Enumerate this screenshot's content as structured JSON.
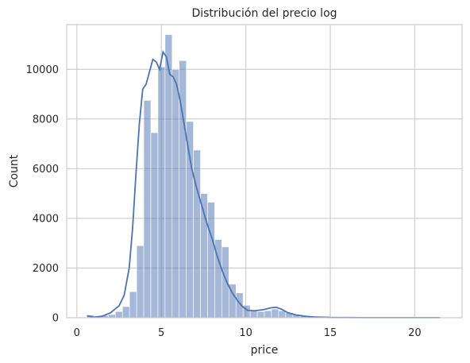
{
  "chart_data": {
    "type": "histogram",
    "title": "Distribución del precio log",
    "xlabel": "price",
    "ylabel": "Count",
    "xlim": [
      -0.6,
      22.8
    ],
    "ylim": [
      0,
      11800
    ],
    "xticks": [
      0,
      5,
      10,
      15,
      20
    ],
    "yticks": [
      0,
      2000,
      4000,
      6000,
      8000,
      10000
    ],
    "grid": true,
    "bin_edges": [
      0.6,
      1.02,
      1.44,
      1.86,
      2.28,
      2.7,
      3.12,
      3.54,
      3.96,
      4.38,
      4.8,
      5.22,
      5.64,
      6.06,
      6.48,
      6.9,
      7.32,
      7.74,
      8.16,
      8.58,
      9.0,
      9.42,
      9.84,
      10.26,
      10.68,
      11.1,
      11.52,
      11.94,
      12.36,
      12.78,
      13.2,
      13.62,
      14.04,
      14.46,
      14.88,
      15.3,
      15.72,
      16.14,
      16.56,
      16.98,
      17.4,
      17.82,
      18.24,
      18.66,
      19.08,
      19.5,
      19.92,
      20.34,
      20.76,
      21.18,
      21.6
    ],
    "counts": [
      110,
      60,
      90,
      130,
      250,
      450,
      1050,
      2900,
      8750,
      7450,
      10100,
      11400,
      10000,
      10350,
      7900,
      6750,
      5000,
      4650,
      3150,
      2850,
      1350,
      1000,
      500,
      300,
      250,
      280,
      350,
      280,
      200,
      120,
      60,
      30,
      20,
      10,
      5,
      5,
      5,
      5,
      5,
      5,
      5,
      5,
      5,
      5,
      5,
      5,
      5,
      5,
      5,
      5
    ],
    "kde": {
      "x": [
        0.6,
        1.0,
        1.5,
        2.0,
        2.5,
        2.8,
        3.1,
        3.3,
        3.5,
        3.7,
        3.9,
        4.1,
        4.3,
        4.5,
        4.7,
        4.9,
        5.1,
        5.3,
        5.5,
        5.7,
        5.9,
        6.1,
        6.3,
        6.5,
        6.8,
        7.1,
        7.4,
        7.7,
        8.0,
        8.3,
        8.6,
        8.9,
        9.2,
        9.5,
        9.8,
        10.1,
        10.5,
        11.0,
        11.5,
        11.8,
        12.1,
        12.5,
        13.0,
        13.5,
        14.0,
        15.0,
        17.0,
        19.0,
        21.5
      ],
      "y": [
        80,
        20,
        60,
        200,
        480,
        900,
        2000,
        3600,
        5800,
        7800,
        9200,
        9400,
        9900,
        10400,
        10300,
        10000,
        10700,
        10500,
        9800,
        9700,
        9400,
        8800,
        8000,
        7200,
        6000,
        5200,
        4500,
        3800,
        3200,
        2500,
        1900,
        1400,
        1000,
        700,
        450,
        300,
        280,
        320,
        400,
        420,
        350,
        200,
        110,
        60,
        30,
        10,
        5,
        5,
        5
      ]
    },
    "colors": {
      "bars": "#4c72b0",
      "kde": "#4c72b0",
      "grid": "#cccccc"
    }
  }
}
